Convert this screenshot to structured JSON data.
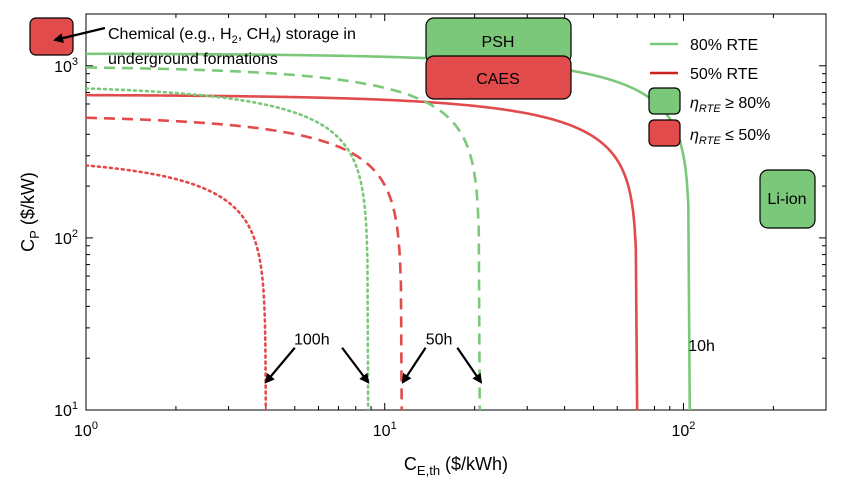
{
  "chart_data": {
    "type": "line",
    "x_scale": "log",
    "y_scale": "log",
    "xlim": [
      1,
      300
    ],
    "ylim": [
      10,
      2000
    ],
    "grid": false,
    "legend_position": "top-right",
    "xlabel": {
      "main": "C",
      "sub": "E,th",
      "unit": " ($/kWh)"
    },
    "ylabel": {
      "main": "C",
      "sub": "P",
      "unit": " ($/kW)"
    },
    "x_ticks": [
      {
        "value": 1,
        "base": "10",
        "exp": "0"
      },
      {
        "value": 10,
        "base": "10",
        "exp": "1"
      },
      {
        "value": 100,
        "base": "10",
        "exp": "2"
      }
    ],
    "y_ticks": [
      {
        "value": 10,
        "base": "10",
        "exp": "1"
      },
      {
        "value": 100,
        "base": "10",
        "exp": "2"
      },
      {
        "value": 1000,
        "base": "10",
        "exp": "3"
      }
    ],
    "colors": {
      "green": "#7cc87a",
      "red": "#e14b4b",
      "legend_line_red": "#cc1f1f"
    },
    "series": [
      {
        "rte": 0.8,
        "duration_h": 10,
        "style": "solid",
        "color_key": "green",
        "cp_max": 1180
      },
      {
        "rte": 0.5,
        "duration_h": 10,
        "style": "solid",
        "color_key": "red",
        "cp_max": 680
      },
      {
        "rte": 0.8,
        "duration_h": 50,
        "style": "dashed",
        "color_key": "green",
        "cp_max": 1000
      },
      {
        "rte": 0.5,
        "duration_h": 50,
        "style": "dashed",
        "color_key": "red",
        "cp_max": 520
      },
      {
        "rte": 0.8,
        "duration_h": 100,
        "style": "dotted",
        "color_key": "green",
        "cp_max": 780
      },
      {
        "rte": 0.5,
        "duration_h": 100,
        "style": "dotted",
        "color_key": "red",
        "cp_max": 300
      }
    ],
    "duration_labels": [
      {
        "text": "10h",
        "x": 115,
        "y": 22
      },
      {
        "text": "50h",
        "x": 15.2,
        "y": 24
      },
      {
        "text": "100h",
        "x": 5.7,
        "y": 24
      }
    ],
    "arrows": [
      {
        "from_x": 5.0,
        "from_y": 23,
        "to_x": 4.0,
        "to_y": 14.5
      },
      {
        "from_x": 7.2,
        "from_y": 23,
        "to_x": 8.8,
        "to_y": 14.5
      },
      {
        "from_x": 13.7,
        "from_y": 23,
        "to_x": 11.5,
        "to_y": 14.5
      },
      {
        "from_x": 17.5,
        "from_y": 23,
        "to_x": 21,
        "to_y": 14.5
      }
    ],
    "legend": {
      "items": [
        {
          "kind": "line",
          "color_key": "green",
          "text": "80% RTE"
        },
        {
          "kind": "line",
          "color_key": "legend_line_red",
          "text": "50% RTE"
        },
        {
          "kind": "patch",
          "color_key": "green",
          "symbol": "η",
          "sub": "RTE",
          "text": " ≥ 80%"
        },
        {
          "kind": "patch",
          "color_key": "red",
          "symbol": "η",
          "sub": "RTE",
          "text": " ≤  50%"
        }
      ]
    },
    "technology_boxes": [
      {
        "label": "PSH",
        "color_key": "green"
      },
      {
        "label": "CAES",
        "color_key": "red"
      },
      {
        "label": "Li-ion",
        "color_key": "green"
      },
      {
        "label": "",
        "color_key": "red"
      }
    ],
    "annotation": {
      "line1_pre": "Chemical (e.g., H",
      "line1_sub1": "2",
      "line1_mid": ", CH",
      "line1_sub2": "4",
      "line1_post": ") storage in",
      "line2": "underground formations"
    }
  }
}
